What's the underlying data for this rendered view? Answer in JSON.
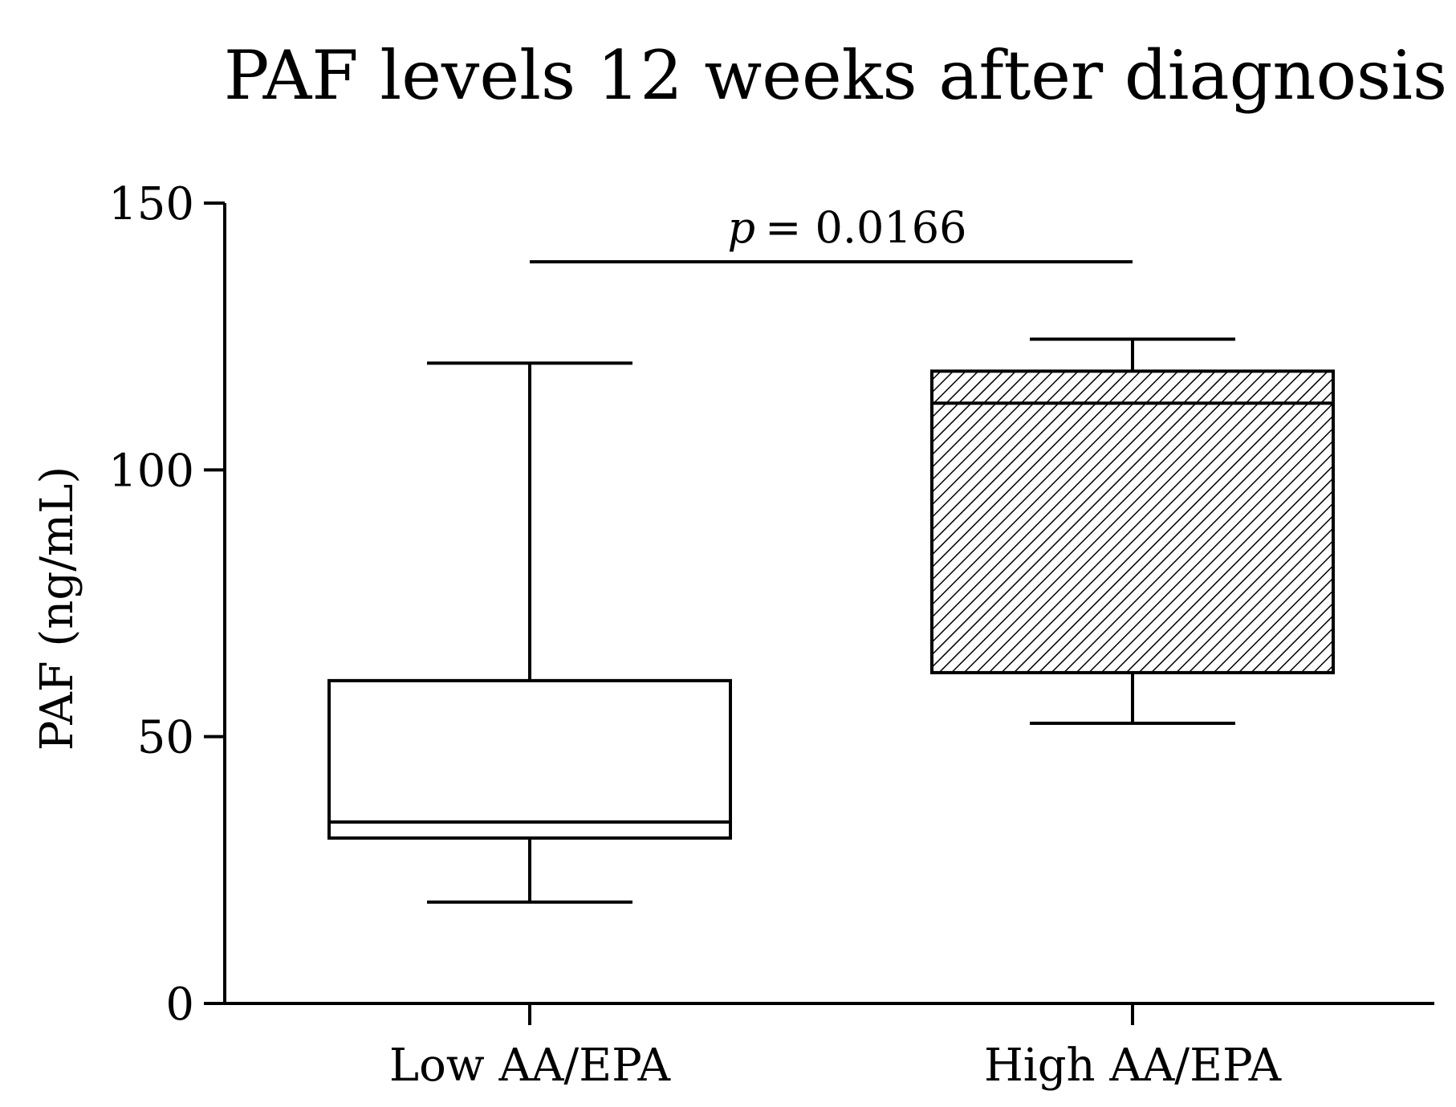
{
  "chart_data": {
    "type": "box",
    "title": "PAF levels 12 weeks after diagnosis",
    "xlabel": "",
    "ylabel": "PAF (ng/mL)",
    "ylim": [
      0,
      150
    ],
    "yticks": [
      0,
      50,
      100,
      150
    ],
    "categories": [
      "Low AA/EPA",
      "High AA/EPA"
    ],
    "boxes": [
      {
        "name": "Low AA/EPA",
        "min": 19,
        "q1": 31,
        "median": 34,
        "q3": 60.5,
        "max": 120,
        "fill": "none"
      },
      {
        "name": "High AA/EPA",
        "min": 52.5,
        "q1": 62,
        "median": 112.5,
        "q3": 118.5,
        "max": 124.5,
        "fill": "hatched"
      }
    ],
    "annotation": {
      "p_symbol": "p",
      "p_text": "= 0.0166",
      "y": 139
    },
    "grid": false,
    "legend": "none"
  }
}
